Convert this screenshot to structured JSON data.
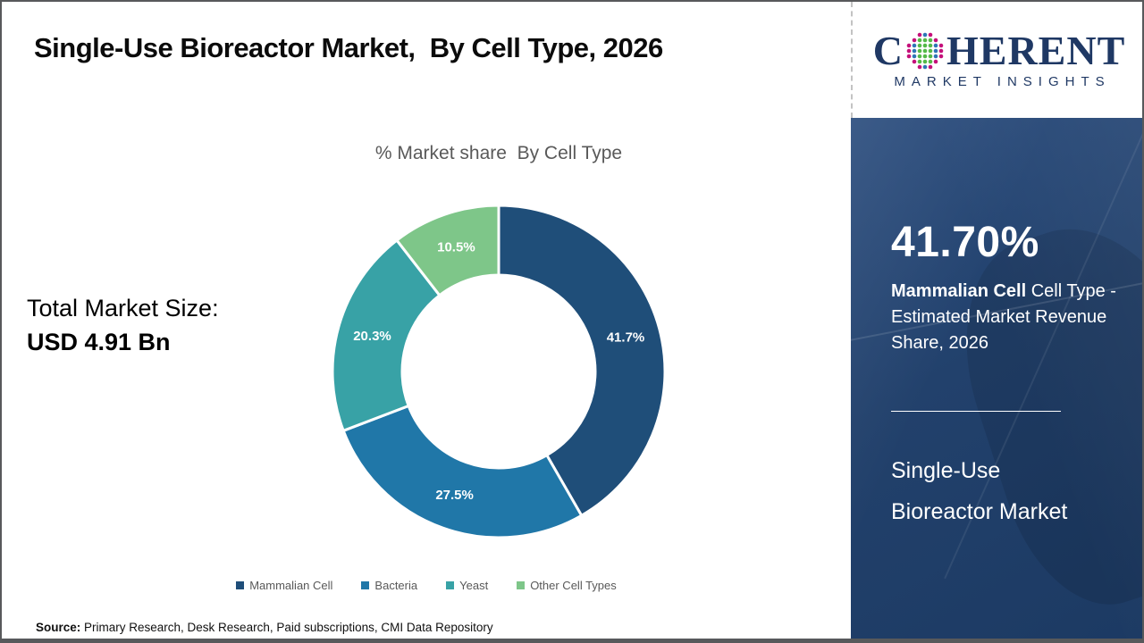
{
  "header": {
    "title": "Single-Use Bioreactor Market,  By Cell Type, 2026"
  },
  "logo": {
    "word_start": "C",
    "word_end": "HERENT",
    "subtitle": "MARKET INSIGHTS",
    "colors": {
      "navy": "#1F3864",
      "green": "#54B948",
      "blue": "#2E75B6",
      "magenta": "#C5107A"
    }
  },
  "left_panel": {
    "total_label": "Total Market Size:",
    "total_value": "USD 4.91 Bn"
  },
  "chart_data": {
    "type": "pie",
    "donut": true,
    "title": "% Market share  By Cell Type",
    "categories": [
      "Mammalian Cell",
      "Bacteria",
      "Yeast",
      "Other Cell Types"
    ],
    "values": [
      41.7,
      27.5,
      20.3,
      10.5
    ],
    "labels": [
      "41.7%",
      "27.5%",
      "20.3%",
      "10.5%"
    ],
    "colors": [
      "#1F4E79",
      "#2077A8",
      "#38A2A6",
      "#7EC689"
    ],
    "legend_position": "bottom",
    "start_angle_deg": 0,
    "direction": "clockwise",
    "inner_radius_ratio": 0.58
  },
  "sidebar": {
    "stat_value": "41.70%",
    "stat_bold": "Mammalian Cell",
    "stat_rest": " Cell Type - Estimated Market Revenue Share, 2026",
    "market_name": "Single-Use\nBioreactor Market",
    "background": "#22416C"
  },
  "footer": {
    "source_label": "Source:",
    "source_text": " Primary Research, Desk Research, Paid subscriptions, CMI Data Repository"
  }
}
